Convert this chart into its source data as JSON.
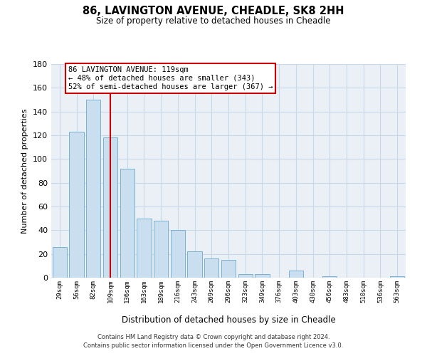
{
  "title": "86, LAVINGTON AVENUE, CHEADLE, SK8 2HH",
  "subtitle": "Size of property relative to detached houses in Cheadle",
  "xlabel": "Distribution of detached houses by size in Cheadle",
  "ylabel": "Number of detached properties",
  "bar_labels": [
    "29sqm",
    "56sqm",
    "82sqm",
    "109sqm",
    "136sqm",
    "163sqm",
    "189sqm",
    "216sqm",
    "243sqm",
    "269sqm",
    "296sqm",
    "323sqm",
    "349sqm",
    "376sqm",
    "403sqm",
    "430sqm",
    "456sqm",
    "483sqm",
    "510sqm",
    "536sqm",
    "563sqm"
  ],
  "bar_values": [
    26,
    123,
    150,
    118,
    92,
    50,
    48,
    40,
    22,
    16,
    15,
    3,
    3,
    0,
    6,
    0,
    1,
    0,
    0,
    0,
    1
  ],
  "bar_color": "#c9dff0",
  "bar_edge_color": "#7ab0d0",
  "ylim": [
    0,
    180
  ],
  "yticks": [
    0,
    20,
    40,
    60,
    80,
    100,
    120,
    140,
    160,
    180
  ],
  "vline_x": 3,
  "vline_color": "#cc0000",
  "annotation_text": "86 LAVINGTON AVENUE: 119sqm\n← 48% of detached houses are smaller (343)\n52% of semi-detached houses are larger (367) →",
  "annotation_box_color": "#ffffff",
  "annotation_box_edge": "#cc0000",
  "footer_line1": "Contains HM Land Registry data © Crown copyright and database right 2024.",
  "footer_line2": "Contains public sector information licensed under the Open Government Licence v3.0.",
  "bg_color": "#eaf0f6",
  "grid_color": "#c8d8e8"
}
